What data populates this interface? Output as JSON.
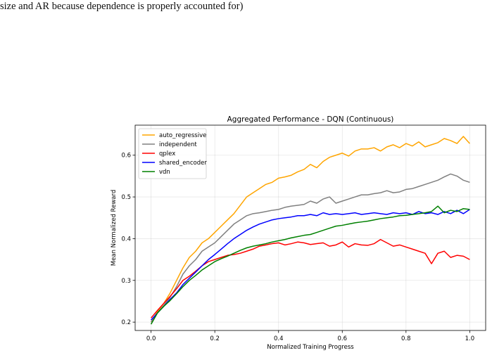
{
  "caption": "size and AR because dependence is properly accounted for)",
  "chart_data": {
    "type": "line",
    "title": "Aggregated Performance - DQN (Continuous)",
    "xlabel": "Normalized Training Progress",
    "ylabel": "Mean Normalized Reward",
    "xlim": [
      -0.05,
      1.05
    ],
    "ylim": [
      0.18,
      0.672
    ],
    "xticks": [
      0.0,
      0.2,
      0.4,
      0.6,
      0.8,
      1.0
    ],
    "xtick_labels": [
      "0.0",
      "0.2",
      "0.4",
      "0.6",
      "0.8",
      "1.0"
    ],
    "yticks": [
      0.2,
      0.3,
      0.4,
      0.5,
      0.6
    ],
    "ytick_labels": [
      "0.2",
      "0.3",
      "0.4",
      "0.5",
      "0.6"
    ],
    "grid": true,
    "legend_position": "upper-left",
    "series": [
      {
        "name": "auto_regressive",
        "color": "#ffa500",
        "x": [
          0.0,
          0.02,
          0.04,
          0.06,
          0.08,
          0.1,
          0.12,
          0.14,
          0.16,
          0.18,
          0.2,
          0.22,
          0.24,
          0.26,
          0.28,
          0.3,
          0.32,
          0.34,
          0.36,
          0.38,
          0.4,
          0.42,
          0.44,
          0.46,
          0.48,
          0.5,
          0.52,
          0.54,
          0.56,
          0.58,
          0.6,
          0.62,
          0.64,
          0.66,
          0.68,
          0.7,
          0.72,
          0.74,
          0.76,
          0.78,
          0.8,
          0.82,
          0.84,
          0.86,
          0.88,
          0.9,
          0.92,
          0.94,
          0.96,
          0.98,
          1.0
        ],
        "y": [
          0.2,
          0.225,
          0.245,
          0.27,
          0.3,
          0.33,
          0.355,
          0.37,
          0.39,
          0.4,
          0.415,
          0.43,
          0.445,
          0.46,
          0.48,
          0.5,
          0.51,
          0.52,
          0.53,
          0.535,
          0.545,
          0.548,
          0.552,
          0.56,
          0.566,
          0.578,
          0.57,
          0.585,
          0.595,
          0.6,
          0.605,
          0.598,
          0.61,
          0.615,
          0.615,
          0.618,
          0.61,
          0.62,
          0.625,
          0.618,
          0.628,
          0.622,
          0.632,
          0.62,
          0.625,
          0.63,
          0.64,
          0.635,
          0.628,
          0.645,
          0.628
        ]
      },
      {
        "name": "independent",
        "color": "#808080",
        "x": [
          0.0,
          0.02,
          0.04,
          0.06,
          0.08,
          0.1,
          0.12,
          0.14,
          0.16,
          0.18,
          0.2,
          0.22,
          0.24,
          0.26,
          0.28,
          0.3,
          0.32,
          0.34,
          0.36,
          0.38,
          0.4,
          0.42,
          0.44,
          0.46,
          0.48,
          0.5,
          0.52,
          0.54,
          0.56,
          0.58,
          0.6,
          0.62,
          0.64,
          0.66,
          0.68,
          0.7,
          0.72,
          0.74,
          0.76,
          0.78,
          0.8,
          0.82,
          0.84,
          0.86,
          0.88,
          0.9,
          0.92,
          0.94,
          0.96,
          0.98,
          1.0
        ],
        "y": [
          0.2,
          0.222,
          0.24,
          0.26,
          0.285,
          0.315,
          0.335,
          0.35,
          0.37,
          0.38,
          0.39,
          0.405,
          0.42,
          0.435,
          0.445,
          0.455,
          0.46,
          0.462,
          0.465,
          0.468,
          0.47,
          0.475,
          0.478,
          0.48,
          0.482,
          0.49,
          0.485,
          0.495,
          0.5,
          0.485,
          0.49,
          0.495,
          0.5,
          0.505,
          0.505,
          0.508,
          0.51,
          0.515,
          0.51,
          0.512,
          0.518,
          0.52,
          0.525,
          0.53,
          0.535,
          0.54,
          0.548,
          0.555,
          0.55,
          0.54,
          0.535
        ]
      },
      {
        "name": "qplex",
        "color": "#ff0000",
        "x": [
          0.0,
          0.02,
          0.04,
          0.06,
          0.08,
          0.1,
          0.12,
          0.14,
          0.16,
          0.18,
          0.2,
          0.22,
          0.24,
          0.26,
          0.28,
          0.3,
          0.32,
          0.34,
          0.36,
          0.38,
          0.4,
          0.42,
          0.44,
          0.46,
          0.48,
          0.5,
          0.52,
          0.54,
          0.56,
          0.58,
          0.6,
          0.62,
          0.64,
          0.66,
          0.68,
          0.7,
          0.72,
          0.74,
          0.76,
          0.78,
          0.8,
          0.82,
          0.84,
          0.86,
          0.88,
          0.9,
          0.92,
          0.94,
          0.96,
          0.98,
          1.0
        ],
        "y": [
          0.21,
          0.228,
          0.245,
          0.262,
          0.28,
          0.3,
          0.31,
          0.322,
          0.335,
          0.345,
          0.35,
          0.355,
          0.36,
          0.362,
          0.365,
          0.37,
          0.375,
          0.382,
          0.385,
          0.388,
          0.39,
          0.385,
          0.388,
          0.392,
          0.39,
          0.386,
          0.388,
          0.39,
          0.382,
          0.385,
          0.392,
          0.38,
          0.388,
          0.385,
          0.384,
          0.388,
          0.398,
          0.39,
          0.382,
          0.385,
          0.38,
          0.375,
          0.37,
          0.365,
          0.34,
          0.365,
          0.37,
          0.355,
          0.36,
          0.358,
          0.35
        ]
      },
      {
        "name": "shared_encoder",
        "color": "#0000ff",
        "x": [
          0.0,
          0.02,
          0.04,
          0.06,
          0.08,
          0.1,
          0.12,
          0.14,
          0.16,
          0.18,
          0.2,
          0.22,
          0.24,
          0.26,
          0.28,
          0.3,
          0.32,
          0.34,
          0.36,
          0.38,
          0.4,
          0.42,
          0.44,
          0.46,
          0.48,
          0.5,
          0.52,
          0.54,
          0.56,
          0.58,
          0.6,
          0.62,
          0.64,
          0.66,
          0.68,
          0.7,
          0.72,
          0.74,
          0.76,
          0.78,
          0.8,
          0.82,
          0.84,
          0.86,
          0.88,
          0.9,
          0.92,
          0.94,
          0.96,
          0.98,
          1.0
        ],
        "y": [
          0.205,
          0.222,
          0.238,
          0.255,
          0.27,
          0.29,
          0.305,
          0.32,
          0.335,
          0.35,
          0.362,
          0.375,
          0.388,
          0.4,
          0.41,
          0.42,
          0.428,
          0.435,
          0.44,
          0.445,
          0.448,
          0.45,
          0.452,
          0.455,
          0.455,
          0.458,
          0.455,
          0.462,
          0.458,
          0.46,
          0.458,
          0.46,
          0.462,
          0.458,
          0.46,
          0.462,
          0.46,
          0.458,
          0.462,
          0.46,
          0.462,
          0.458,
          0.465,
          0.46,
          0.462,
          0.458,
          0.465,
          0.46,
          0.468,
          0.46,
          0.47
        ]
      },
      {
        "name": "vdn",
        "color": "#008000",
        "x": [
          0.0,
          0.02,
          0.04,
          0.06,
          0.08,
          0.1,
          0.12,
          0.14,
          0.16,
          0.18,
          0.2,
          0.22,
          0.24,
          0.26,
          0.28,
          0.3,
          0.32,
          0.34,
          0.36,
          0.38,
          0.4,
          0.42,
          0.44,
          0.46,
          0.48,
          0.5,
          0.52,
          0.54,
          0.56,
          0.58,
          0.6,
          0.62,
          0.64,
          0.66,
          0.68,
          0.7,
          0.72,
          0.74,
          0.76,
          0.78,
          0.8,
          0.82,
          0.84,
          0.86,
          0.88,
          0.9,
          0.92,
          0.94,
          0.96,
          0.98,
          1.0
        ],
        "y": [
          0.195,
          0.222,
          0.238,
          0.252,
          0.268,
          0.285,
          0.3,
          0.312,
          0.325,
          0.335,
          0.345,
          0.352,
          0.358,
          0.365,
          0.372,
          0.378,
          0.382,
          0.385,
          0.388,
          0.392,
          0.395,
          0.398,
          0.402,
          0.405,
          0.408,
          0.41,
          0.415,
          0.42,
          0.425,
          0.43,
          0.432,
          0.435,
          0.438,
          0.44,
          0.442,
          0.445,
          0.448,
          0.45,
          0.452,
          0.455,
          0.456,
          0.458,
          0.46,
          0.462,
          0.465,
          0.478,
          0.462,
          0.468,
          0.465,
          0.472,
          0.47
        ]
      }
    ]
  }
}
